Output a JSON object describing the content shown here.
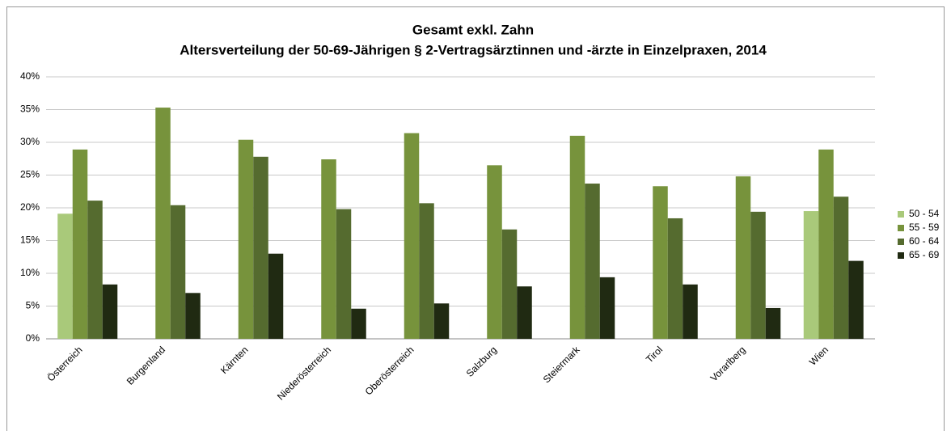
{
  "chart_data": {
    "type": "bar",
    "title": "Gesamt exkl. Zahn",
    "subtitle": "Altersverteilung der 50-69-Jährigen § 2-Vertragsärztinnen und -ärzte in Einzelpraxen, 2014",
    "categories": [
      "Österreich",
      "Burgenland",
      "Kärnten",
      "Niederösterreich",
      "Oberösterreich",
      "Salzburg",
      "Steiermark",
      "Tirol",
      "Vorarlberg",
      "Wien"
    ],
    "series": [
      {
        "name": "50 - 54",
        "color": "#a9c97a",
        "values": [
          19.1,
          null,
          null,
          null,
          null,
          null,
          null,
          null,
          null,
          19.5
        ]
      },
      {
        "name": "55 - 59",
        "color": "#77933c",
        "values": [
          28.9,
          35.3,
          30.4,
          27.4,
          31.4,
          26.5,
          31.0,
          23.3,
          24.8,
          28.9
        ]
      },
      {
        "name": "60 - 64",
        "color": "#556b2f",
        "values": [
          21.1,
          20.4,
          27.8,
          19.8,
          20.7,
          16.7,
          23.7,
          18.4,
          19.4,
          21.7
        ]
      },
      {
        "name": "65 - 69",
        "color": "#202a12",
        "values": [
          8.3,
          7.0,
          13.0,
          4.6,
          5.4,
          8.0,
          9.4,
          8.3,
          4.7,
          11.9
        ]
      }
    ],
    "ylim": [
      0,
      40
    ],
    "yticks": [
      {
        "value": 0,
        "label": "0%"
      },
      {
        "value": 5,
        "label": "5%"
      },
      {
        "value": 10,
        "label": "10%"
      },
      {
        "value": 15,
        "label": "15%"
      },
      {
        "value": 20,
        "label": "20%"
      },
      {
        "value": 25,
        "label": "25%"
      },
      {
        "value": 30,
        "label": "30%"
      },
      {
        "value": 35,
        "label": "35%"
      },
      {
        "value": 40,
        "label": "40%"
      }
    ],
    "grid": true,
    "legend": "right"
  }
}
